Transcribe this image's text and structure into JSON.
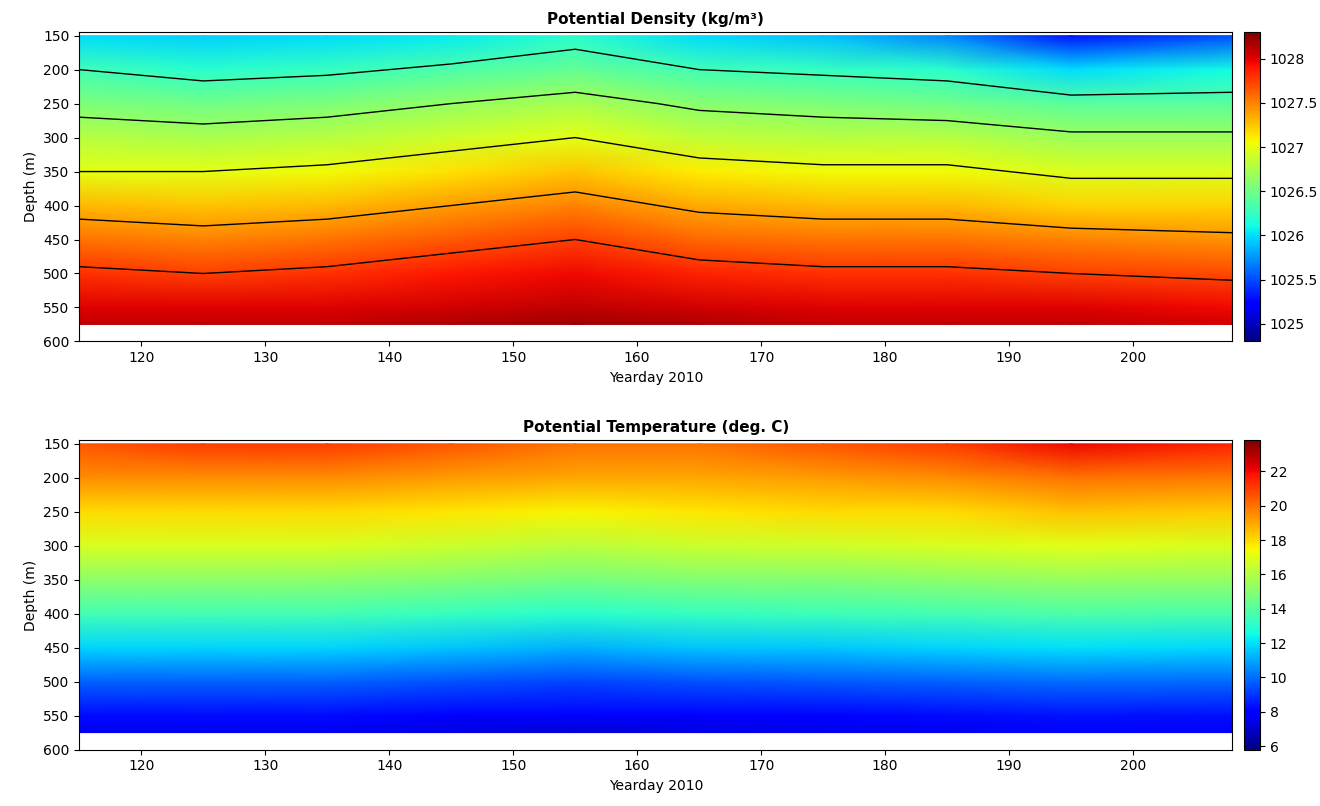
{
  "chart_data": [
    {
      "type": "heatmap",
      "title": "Potential Density (kg/m³)",
      "x_label": "Yearday 2010",
      "y_label": "Depth (m)",
      "x": [
        115,
        125,
        135,
        145,
        155,
        165,
        175,
        185,
        195,
        208
      ],
      "y": [
        150,
        200,
        250,
        300,
        350,
        400,
        450,
        500,
        550,
        575
      ],
      "cells": [
        [
          1026.0,
          1025.95,
          1026.0,
          1026.05,
          1026.2,
          1026.0,
          1025.9,
          1025.7,
          1025.3,
          1025.5
        ],
        [
          1026.3,
          1026.2,
          1026.25,
          1026.35,
          1026.45,
          1026.3,
          1026.25,
          1026.2,
          1026.0,
          1026.1
        ],
        [
          1026.55,
          1026.5,
          1026.55,
          1026.65,
          1026.75,
          1026.6,
          1026.55,
          1026.5,
          1026.4,
          1026.4
        ],
        [
          1026.8,
          1026.75,
          1026.8,
          1026.9,
          1027.0,
          1026.85,
          1026.8,
          1026.8,
          1026.7,
          1026.7
        ],
        [
          1027.0,
          1027.0,
          1027.05,
          1027.15,
          1027.25,
          1027.1,
          1027.05,
          1027.05,
          1026.95,
          1026.95
        ],
        [
          1027.3,
          1027.25,
          1027.3,
          1027.4,
          1027.5,
          1027.35,
          1027.3,
          1027.3,
          1027.2,
          1027.2
        ],
        [
          1027.55,
          1027.5,
          1027.55,
          1027.65,
          1027.75,
          1027.6,
          1027.55,
          1027.55,
          1027.5,
          1027.45
        ],
        [
          1027.8,
          1027.75,
          1027.8,
          1027.9,
          1027.95,
          1027.85,
          1027.8,
          1027.8,
          1027.75,
          1027.7
        ],
        [
          1028.0,
          1028.0,
          1028.0,
          1028.05,
          1028.1,
          1028.05,
          1028.0,
          1028.0,
          1028.0,
          1027.95
        ],
        [
          1028.1,
          1028.1,
          1028.1,
          1028.15,
          1028.2,
          1028.15,
          1028.1,
          1028.1,
          1028.1,
          1028.05
        ]
      ],
      "contour_levels": [
        1026.3,
        1026.65,
        1027.0,
        1027.4,
        1027.75
      ],
      "colorbar_range": [
        1024.8,
        1028.3
      ],
      "colorbar_ticks": [
        1025,
        1025.5,
        1026,
        1026.5,
        1027,
        1027.5,
        1028
      ],
      "color": "jet",
      "xlim": [
        115,
        208
      ],
      "xticks": [
        120,
        130,
        140,
        150,
        160,
        170,
        180,
        190,
        200
      ],
      "ylim": [
        600,
        145
      ],
      "yticks": [
        150,
        200,
        250,
        300,
        350,
        400,
        450,
        500,
        550,
        600
      ]
    },
    {
      "type": "heatmap",
      "title": "Potential Temperature (deg. C)",
      "x_label": "Yearday 2010",
      "y_label": "Depth (m)",
      "x": [
        115,
        125,
        135,
        145,
        155,
        165,
        175,
        185,
        195,
        208
      ],
      "y": [
        150,
        200,
        250,
        300,
        350,
        400,
        450,
        500,
        550,
        575
      ],
      "cells": [
        [
          20.5,
          21,
          21,
          20.5,
          20,
          20,
          20.5,
          21,
          22,
          21.5
        ],
        [
          19.5,
          19.5,
          19.5,
          19.2,
          19,
          19,
          19.2,
          19.5,
          20,
          19.8
        ],
        [
          18,
          18,
          18,
          17.8,
          17.5,
          17.8,
          18,
          18,
          18.5,
          18.3
        ],
        [
          16.8,
          16.8,
          16.8,
          16.5,
          16.2,
          16.5,
          16.6,
          16.8,
          17,
          16.8
        ],
        [
          15.2,
          15.2,
          15.2,
          15,
          14.7,
          15,
          15,
          15.2,
          15.4,
          15.3
        ],
        [
          13.6,
          13.6,
          13.6,
          13.3,
          13,
          13.3,
          13.4,
          13.6,
          13.8,
          13.7
        ],
        [
          11.8,
          11.8,
          11.8,
          11.5,
          11.2,
          11.5,
          11.6,
          11.8,
          12,
          11.9
        ],
        [
          9.8,
          9.8,
          9.8,
          9.5,
          9.3,
          9.5,
          9.6,
          9.8,
          10,
          9.9
        ],
        [
          8.2,
          8.2,
          8.2,
          8,
          7.8,
          8,
          8.1,
          8.2,
          8.4,
          8.3
        ],
        [
          7.6,
          7.6,
          7.6,
          7.4,
          7.2,
          7.4,
          7.5,
          7.6,
          7.8,
          7.7
        ]
      ],
      "colorbar_range": [
        5.8,
        23.8
      ],
      "colorbar_ticks": [
        6,
        8,
        10,
        12,
        14,
        16,
        18,
        20,
        22
      ],
      "color": "jet",
      "xlim": [
        115,
        208
      ],
      "xticks": [
        120,
        130,
        140,
        150,
        160,
        170,
        180,
        190,
        200
      ],
      "ylim": [
        600,
        145
      ],
      "yticks": [
        150,
        200,
        250,
        300,
        350,
        400,
        450,
        500,
        550,
        600
      ]
    }
  ]
}
